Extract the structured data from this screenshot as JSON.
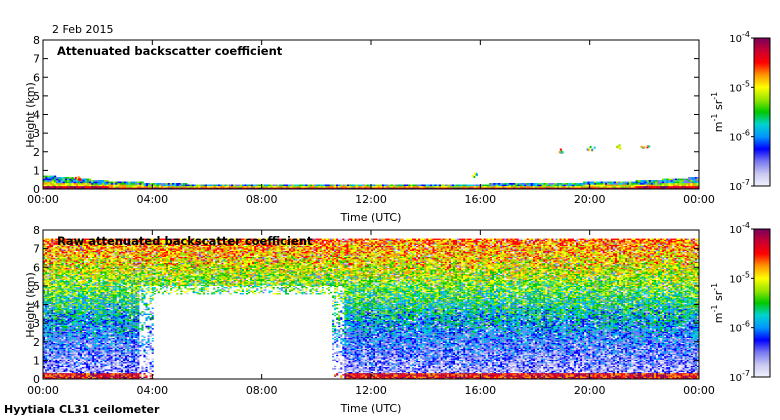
{
  "header": {
    "date": "2 Feb 2015",
    "instrument": "Hyytiala CL31 ceilometer"
  },
  "chart_data": [
    {
      "type": "heatmap",
      "title": "Attenuated backscatter coefficient",
      "xlabel": "Time (UTC)",
      "ylabel": "Height (km)",
      "xlim": [
        0,
        24
      ],
      "ylim": [
        0,
        8
      ],
      "x_ticks": [
        "00:00",
        "04:00",
        "08:00",
        "12:00",
        "16:00",
        "20:00",
        "00:00"
      ],
      "y_ticks": [
        "0",
        "1",
        "2",
        "3",
        "4",
        "5",
        "6",
        "7",
        "8"
      ],
      "colorbar": {
        "scale": "log",
        "range": [
          1e-07,
          0.0001
        ],
        "ticks": [
          {
            "base": "10",
            "exp": "-4"
          },
          {
            "base": "10",
            "exp": "-5"
          },
          {
            "base": "10",
            "exp": "-6"
          },
          {
            "base": "10",
            "exp": "-7"
          }
        ],
        "unit": {
          "a": "m",
          "a_exp": "-1",
          "b": "sr",
          "b_exp": "-1"
        },
        "colors": [
          "#f2f2ff",
          "#c8c8f0",
          "#7878f0",
          "#0000ff",
          "#0096ff",
          "#00d2d2",
          "#00c800",
          "#96e600",
          "#ffff00",
          "#ff9600",
          "#ff0000",
          "#c80032",
          "#78005a"
        ]
      },
      "features": {
        "boundary_layer_top_km": [
          0.7,
          0.4,
          0.25,
          0.2,
          0.2,
          0.2,
          0.2,
          0.25,
          0.3,
          0.4,
          0.6
        ],
        "cloud_patches": [
          {
            "time_h": 1.2,
            "height_km": 0.6
          },
          {
            "time_h": 15.8,
            "height_km": 0.8
          },
          {
            "time_h": 19.0,
            "height_km": 2.1
          },
          {
            "time_h": 20.0,
            "height_km": 2.2
          },
          {
            "time_h": 21.0,
            "height_km": 2.3
          },
          {
            "time_h": 22.0,
            "height_km": 2.35
          }
        ]
      }
    },
    {
      "type": "heatmap",
      "title": "Raw attenuated backscatter coefficient",
      "xlabel": "Time (UTC)",
      "ylabel": "Height (km)",
      "xlim": [
        0,
        24
      ],
      "ylim": [
        0,
        8
      ],
      "x_ticks": [
        "00:00",
        "04:00",
        "08:00",
        "12:00",
        "16:00",
        "20:00",
        "00:00"
      ],
      "y_ticks": [
        "0",
        "1",
        "2",
        "3",
        "4",
        "5",
        "6",
        "7",
        "8"
      ],
      "colorbar": {
        "scale": "log",
        "range": [
          1e-07,
          0.0001
        ],
        "ticks": [
          {
            "base": "10",
            "exp": "-4"
          },
          {
            "base": "10",
            "exp": "-5"
          },
          {
            "base": "10",
            "exp": "-6"
          },
          {
            "base": "10",
            "exp": "-7"
          }
        ],
        "unit": {
          "a": "m",
          "a_exp": "-1",
          "b": "sr",
          "b_exp": "-1"
        },
        "colors": [
          "#f2f2ff",
          "#c8c8f0",
          "#7878f0",
          "#0000ff",
          "#0096ff",
          "#00d2d2",
          "#00c800",
          "#96e600",
          "#ffff00",
          "#ff9600",
          "#ff0000",
          "#c80032",
          "#78005a"
        ]
      },
      "features": {
        "noise_gradient": {
          "low_km": 0,
          "high_km": 7.5
        },
        "clear_region": {
          "start_h": 3.5,
          "end_h": 11.0,
          "top_km": 5.0
        }
      }
    }
  ]
}
